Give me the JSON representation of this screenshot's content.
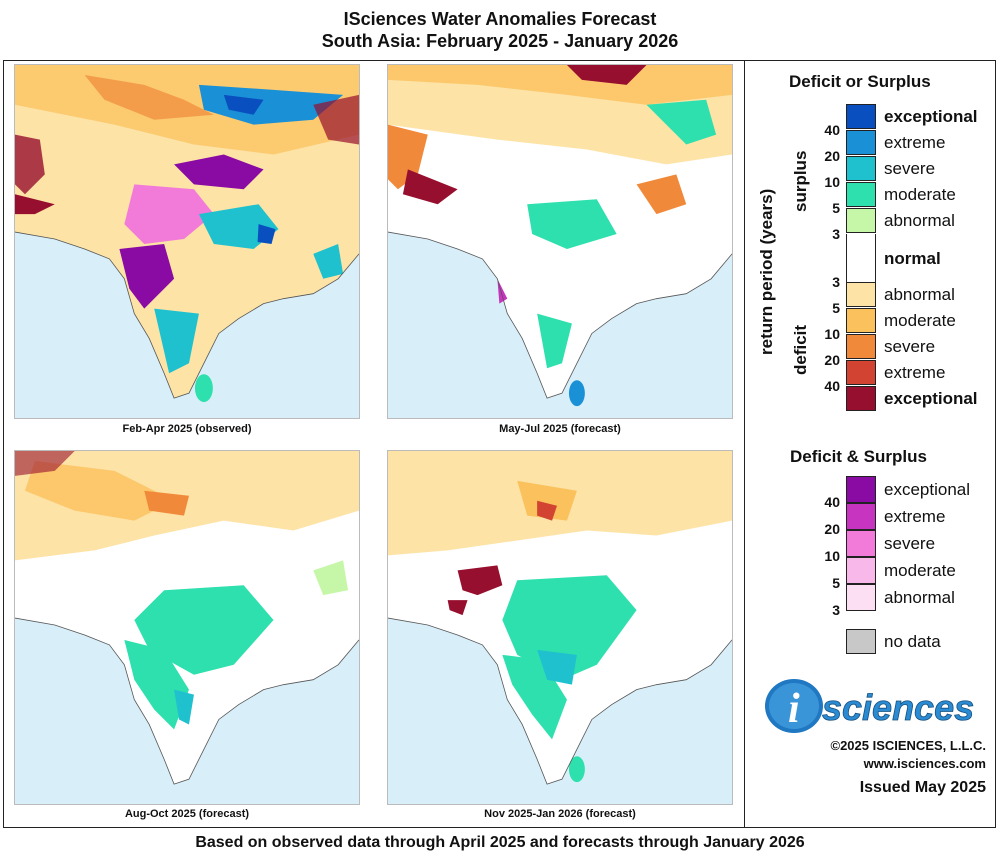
{
  "title": {
    "line1": "ISciences Water Anomalies Forecast",
    "line2": "South Asia: February 2025 - January 2026"
  },
  "maps": [
    {
      "caption": "Feb-Apr 2025 (observed)"
    },
    {
      "caption": "May-Jul 2025 (forecast)"
    },
    {
      "caption": "Aug-Oct 2025 (forecast)"
    },
    {
      "caption": "Nov 2025-Jan 2026 (forecast)"
    }
  ],
  "legend1": {
    "title": "Deficit or Surplus",
    "axis_label": "return period (years)",
    "surplus_label": "surplus",
    "deficit_label": "deficit",
    "surplus": [
      {
        "label": "exceptional",
        "color": "#0a4fbf",
        "bold": true
      },
      {
        "label": "extreme",
        "color": "#1a90d6",
        "bold": false
      },
      {
        "label": "severe",
        "color": "#1fc1cf",
        "bold": false
      },
      {
        "label": "moderate",
        "color": "#2ee0ad",
        "bold": false
      },
      {
        "label": "abnormal",
        "color": "#c6f7a9",
        "bold": false
      }
    ],
    "normal": {
      "label": "normal",
      "color": "#ffffff"
    },
    "deficit": [
      {
        "label": "abnormal",
        "color": "#fde3a6",
        "bold": false
      },
      {
        "label": "moderate",
        "color": "#fbc15c",
        "bold": false
      },
      {
        "label": "severe",
        "color": "#f08a3a",
        "bold": false
      },
      {
        "label": "extreme",
        "color": "#d24431",
        "bold": false
      },
      {
        "label": "exceptional",
        "color": "#970f2e",
        "bold": true
      }
    ],
    "surplus_ticks": [
      "40",
      "20",
      "10",
      "5",
      "3"
    ],
    "deficit_ticks": [
      "3",
      "5",
      "10",
      "20",
      "40"
    ]
  },
  "legend2": {
    "title": "Deficit & Surplus",
    "items": [
      {
        "label": "exceptional",
        "color": "#8a0ba4"
      },
      {
        "label": "extreme",
        "color": "#c735c0"
      },
      {
        "label": "severe",
        "color": "#f27ad9"
      },
      {
        "label": "moderate",
        "color": "#f8b9ea"
      },
      {
        "label": "abnormal",
        "color": "#fcdff3"
      }
    ],
    "ticks": [
      "40",
      "20",
      "10",
      "5",
      "3"
    ],
    "nodata": {
      "label": "no data",
      "color": "#c8c8c8"
    }
  },
  "brand": {
    "logo_i": "i",
    "logo_text": "sciences",
    "copyright": "©2025 ISCIENCES, L.L.C.",
    "website": "www.isciences.com",
    "issued": "Issued May 2025"
  },
  "footer": "Based on observed data through April 2025 and forecasts through January 2026"
}
